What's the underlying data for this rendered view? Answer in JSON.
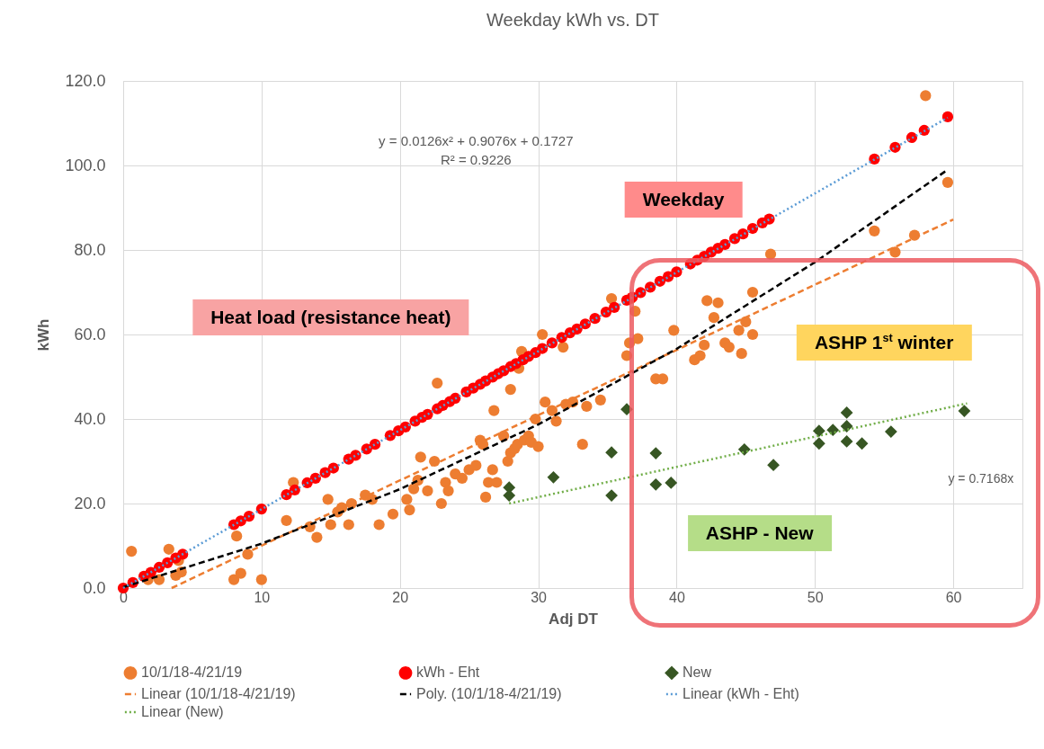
{
  "chart_data": {
    "type": "scatter",
    "title": "Weekday kWh vs. DT",
    "xlabel": "Adj DT",
    "ylabel": "kWh",
    "xlim": [
      0,
      65
    ],
    "xticks": [
      0,
      10,
      20,
      30,
      40,
      50,
      60
    ],
    "ylim": [
      0,
      120
    ],
    "yticks": [
      {
        "value": 0,
        "label": "0.0"
      },
      {
        "value": 20,
        "label": "20.0"
      },
      {
        "value": 40,
        "label": "40.0"
      },
      {
        "value": 60,
        "label": "60.0"
      },
      {
        "value": 80,
        "label": "80.0"
      },
      {
        "value": 100,
        "label": "100.0"
      },
      {
        "value": 120,
        "label": "120.0"
      }
    ],
    "grid": true,
    "legend": "bottom",
    "annotations": [
      "y = 0.0126x² + 0.9076x + 0.1727",
      "R² = 0.9226",
      "y = 0.7168x",
      "Weekday",
      "Heat load (resistance heat)",
      "ASHP 1$^{st}$ winter",
      "ASHP - New"
    ],
    "series": [
      {
        "name": "10/1/18-4/21/19",
        "type": "scatter",
        "marker": "circle",
        "color": "#ed7d31",
        "x": [
          0.6,
          3.3,
          4.0,
          1.8,
          2.6,
          3.8,
          4.2,
          8.0,
          8.5,
          9.0,
          8.2,
          10.0,
          11.8,
          12.3,
          13.5,
          14.0,
          14.8,
          15.0,
          15.5,
          15.8,
          16.3,
          16.5,
          17.5,
          18.0,
          18.5,
          19.5,
          20.5,
          20.7,
          21.0,
          21.3,
          21.5,
          22.0,
          22.7,
          22.5,
          23.0,
          23.3,
          23.5,
          24.0,
          24.5,
          25.0,
          25.5,
          25.8,
          26.0,
          26.2,
          26.4,
          26.7,
          26.8,
          27.0,
          27.5,
          27.8,
          28.0,
          28.3,
          28.5,
          28.0,
          28.6,
          28.8,
          29.0,
          29.3,
          29.5,
          30.0,
          29.8,
          30.5,
          31.0,
          31.3,
          31.8,
          30.3,
          32.0,
          32.5,
          33.2,
          33.5,
          34.5,
          35.3,
          36.4,
          36.6,
          36.7,
          37.0,
          37.2,
          38.5,
          39.0,
          39.8,
          41.3,
          41.7,
          42.0,
          42.2,
          42.7,
          43.0,
          43.5,
          43.8,
          44.5,
          44.7,
          45.0,
          45.5,
          45.5,
          46.8,
          54.3,
          55.8,
          57.2,
          58.0,
          59.6
        ],
        "values": [
          8.7,
          9.2,
          6.5,
          2.0,
          2.0,
          3.0,
          3.8,
          2.0,
          3.5,
          8.0,
          12.3,
          2.0,
          16.0,
          25.0,
          14.5,
          12.0,
          21.0,
          15.0,
          18.0,
          19.0,
          15.0,
          20.0,
          22.0,
          21.0,
          15.0,
          17.5,
          21.0,
          18.5,
          23.5,
          25.5,
          31.0,
          23.0,
          48.5,
          30.0,
          20.0,
          25.0,
          23.0,
          27.0,
          26.0,
          28.0,
          29.0,
          35.0,
          34.0,
          21.5,
          25.0,
          28.0,
          42.0,
          25.0,
          36.0,
          30.0,
          32.0,
          33.0,
          34.0,
          47.0,
          52.0,
          56.0,
          35.0,
          36.0,
          34.5,
          33.5,
          40.0,
          44.0,
          42.0,
          39.5,
          57.0,
          60.0,
          43.5,
          44.0,
          34.0,
          43.0,
          44.5,
          68.5,
          55.0,
          58.0,
          68.5,
          65.5,
          59.0,
          49.5,
          49.5,
          61.0,
          54.0,
          55.0,
          57.5,
          68.0,
          64.0,
          67.5,
          58.0,
          57.0,
          61.0,
          55.5,
          63.0,
          70.0,
          60.0,
          79.0,
          84.5,
          79.5,
          83.5,
          116.5,
          96.0
        ]
      },
      {
        "name": "kWh - Eht",
        "type": "scatter",
        "marker": "circle",
        "color": "#ff0000",
        "x": [
          0,
          0.7,
          1.5,
          2.0,
          2.6,
          3.2,
          3.8,
          4.3,
          8.0,
          8.5,
          9.1,
          10.0,
          11.8,
          12.4,
          13.3,
          13.9,
          14.6,
          15.2,
          16.3,
          16.8,
          17.6,
          18.2,
          19.3,
          19.9,
          20.4,
          21.1,
          21.6,
          22.0,
          22.7,
          23.1,
          23.6,
          24.0,
          24.8,
          25.3,
          25.8,
          26.2,
          26.7,
          27.1,
          27.5,
          28.0,
          28.4,
          28.9,
          29.3,
          29.8,
          30.3,
          31.0,
          31.7,
          32.3,
          32.8,
          33.4,
          34.1,
          34.9,
          35.5,
          36.4,
          36.8,
          37.4,
          38.1,
          38.8,
          39.4,
          40.0,
          41.0,
          41.5,
          42.0,
          42.5,
          43.0,
          43.5,
          44.2,
          44.8,
          45.5,
          46.2,
          46.7,
          54.3,
          55.8,
          57.0,
          57.9,
          59.6
        ],
        "values": [
          0,
          1.3,
          2.8,
          3.7,
          4.9,
          6.0,
          7.1,
          8.0,
          15.0,
          15.9,
          17.0,
          18.7,
          22.1,
          23.2,
          24.9,
          26.0,
          27.3,
          28.4,
          30.5,
          31.4,
          32.9,
          34.0,
          36.1,
          37.2,
          38.1,
          39.5,
          40.4,
          41.1,
          42.4,
          43.2,
          44.1,
          44.9,
          46.4,
          47.3,
          48.2,
          49.0,
          49.9,
          50.7,
          51.4,
          52.4,
          53.1,
          54.0,
          54.8,
          55.7,
          56.7,
          58.0,
          59.3,
          60.4,
          61.3,
          62.5,
          63.8,
          65.3,
          66.4,
          68.1,
          68.8,
          69.9,
          71.2,
          72.6,
          73.7,
          74.8,
          76.7,
          77.6,
          78.5,
          79.5,
          80.4,
          81.3,
          82.7,
          83.8,
          85.1,
          86.4,
          87.3,
          101.5,
          104.3,
          106.6,
          108.3,
          111.5
        ]
      },
      {
        "name": "New",
        "type": "scatter",
        "marker": "diamond",
        "color": "#375623",
        "x": [
          27.9,
          27.9,
          31.1,
          35.3,
          35.3,
          36.4,
          38.5,
          38.5,
          39.6,
          44.9,
          47.0,
          50.3,
          50.3,
          51.3,
          52.3,
          52.3,
          52.3,
          53.4,
          55.5,
          60.8
        ],
        "values": [
          23.8,
          21.9,
          26.2,
          32.1,
          21.9,
          42.3,
          31.9,
          24.5,
          24.9,
          32.8,
          29.1,
          37.2,
          34.2,
          37.4,
          41.5,
          38.3,
          34.7,
          34.2,
          37.0,
          41.9
        ]
      },
      {
        "name": "Linear (10/1/18-4/21/19)",
        "type": "line",
        "line_style": "dashed",
        "color": "#ed7d31",
        "x": [
          3.5,
          60
        ],
        "values": [
          0,
          87.2
        ]
      },
      {
        "name": "Poly. (10/1/18-4/21/19)",
        "type": "line",
        "line_style": "dashed",
        "color": "#000000",
        "x": [
          0,
          10,
          20,
          30,
          40,
          50,
          59.6
        ],
        "values": [
          0.2,
          10.5,
          23.4,
          38.7,
          56.6,
          77.1,
          99.0
        ]
      },
      {
        "name": "Linear (kWh - Eht)",
        "type": "line",
        "line_style": "dotted",
        "color": "#5b9bd5",
        "x": [
          0,
          59.6
        ],
        "values": [
          0,
          111.3
        ]
      },
      {
        "name": "Linear (New)",
        "type": "line",
        "line_style": "dotted",
        "color": "#70ad47",
        "x": [
          27.9,
          61
        ],
        "values": [
          20.0,
          43.7
        ]
      }
    ]
  }
}
